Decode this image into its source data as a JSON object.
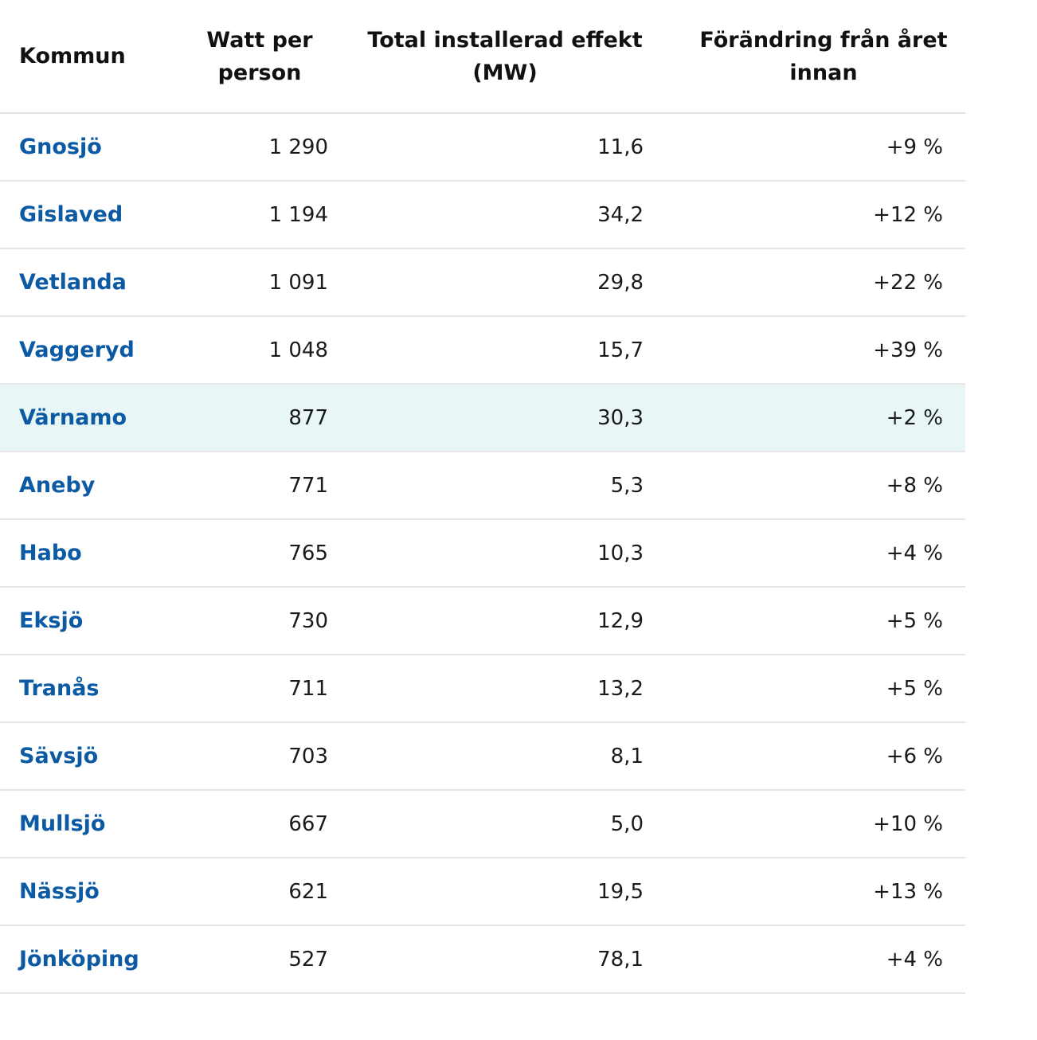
{
  "colors": {
    "link": "#0b5aa3",
    "highlight_row_bg": "#e8f7f5",
    "text": "#1a1a1a",
    "divider": "#e6e6e6"
  },
  "chart_data": {
    "type": "table",
    "columns": [
      "Kommun",
      "Watt per person",
      "Total installerad effekt (MW)",
      "Förändring från året innan"
    ],
    "highlighted_row": "Värnamo",
    "rows": [
      {
        "kommun": "Gnosjö",
        "watt": "1 290",
        "total": "11,6",
        "change": "+9 %"
      },
      {
        "kommun": "Gislaved",
        "watt": "1 194",
        "total": "34,2",
        "change": "+12 %"
      },
      {
        "kommun": "Vetlanda",
        "watt": "1 091",
        "total": "29,8",
        "change": "+22 %"
      },
      {
        "kommun": "Vaggeryd",
        "watt": "1 048",
        "total": "15,7",
        "change": "+39 %"
      },
      {
        "kommun": "Värnamo",
        "watt": "877",
        "total": "30,3",
        "change": "+2 %"
      },
      {
        "kommun": "Aneby",
        "watt": "771",
        "total": "5,3",
        "change": "+8 %"
      },
      {
        "kommun": "Habo",
        "watt": "765",
        "total": "10,3",
        "change": "+4 %"
      },
      {
        "kommun": "Eksjö",
        "watt": "730",
        "total": "12,9",
        "change": "+5 %"
      },
      {
        "kommun": "Tranås",
        "watt": "711",
        "total": "13,2",
        "change": "+5 %"
      },
      {
        "kommun": "Sävsjö",
        "watt": "703",
        "total": "8,1",
        "change": "+6 %"
      },
      {
        "kommun": "Mullsjö",
        "watt": "667",
        "total": "5,0",
        "change": "+10 %"
      },
      {
        "kommun": "Nässjö",
        "watt": "621",
        "total": "19,5",
        "change": "+13 %"
      },
      {
        "kommun": "Jönköping",
        "watt": "527",
        "total": "78,1",
        "change": "+4 %"
      }
    ]
  },
  "header": {
    "kommun": "Kommun",
    "watt_line1": "Watt per",
    "watt_line2": "person",
    "total_line1": "Total installerad effekt",
    "total_line2": "(MW)",
    "change_line1": "Förändring från året",
    "change_line2": "innan"
  }
}
